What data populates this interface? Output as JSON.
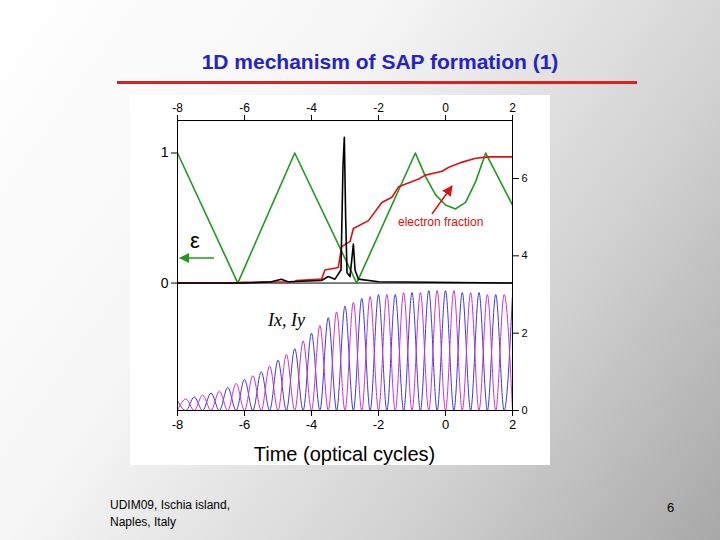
{
  "slide": {
    "title": "1D mechanism of SAP formation (1)",
    "footer": [
      "UDIM09, Ischia island,",
      "Naples, Italy"
    ],
    "page": 6
  },
  "chart_data": {
    "type": "line",
    "xlabel": "Time (optical cycles)",
    "xlim": [
      -8,
      2
    ],
    "xticks": [
      -8,
      -6,
      -4,
      -2,
      0,
      2
    ],
    "ylim": [
      -0.98,
      1.25
    ],
    "yticks": [
      0,
      1
    ],
    "y2lim": [
      0,
      7.5
    ],
    "y2ticks": [
      0,
      2,
      4,
      6
    ],
    "annotations": [
      "Ix, Iy"
    ],
    "series": [
      {
        "name": "ε",
        "color": "#1e9a1e",
        "x": [
          -8,
          -6.2,
          -4.5,
          -2.65,
          -0.9,
          -0.6,
          -0.3,
          0,
          0.3,
          0.6,
          0.9,
          1.2,
          1.6,
          2
        ],
        "values": [
          1,
          0,
          1,
          0,
          1,
          0.82,
          0.68,
          0.6,
          0.57,
          0.62,
          0.78,
          1,
          0.8,
          0.6
        ]
      },
      {
        "name": "electron fraction",
        "color": "#e01010",
        "x": [
          -8,
          -6.2,
          -6.1,
          -4.5,
          -4.45,
          -3.7,
          -3.6,
          -3.2,
          -3.1,
          -2.85,
          -2.75,
          -2.3,
          -1.9,
          -1.6,
          -1.4,
          -0.8,
          -0.6,
          -0.1,
          0.1,
          0.5,
          0.9,
          1.3,
          2
        ],
        "values": [
          0,
          0,
          0.005,
          0.01,
          0.02,
          0.03,
          0.1,
          0.12,
          0.28,
          0.32,
          0.42,
          0.48,
          0.62,
          0.66,
          0.74,
          0.8,
          0.83,
          0.86,
          0.89,
          0.93,
          0.96,
          0.97,
          0.97
        ]
      },
      {
        "color": "#000000",
        "x": [
          -8,
          -6,
          -5.2,
          -4.9,
          -4.7,
          -3.7,
          -3.5,
          -3.3,
          -3.12,
          -3.06,
          -3.02,
          -2.98,
          -2.94,
          -2.85,
          -2.75,
          -2.7,
          -2.6,
          -2,
          2
        ],
        "values": [
          0,
          0,
          0.01,
          0.03,
          0.01,
          0.02,
          0.05,
          0.03,
          0.1,
          0.9,
          1.12,
          0.5,
          0.08,
          0.05,
          0.3,
          0.1,
          0.03,
          0.01,
          0
        ]
      },
      {
        "color": "#3a3ad6",
        "axis": "y2",
        "x": [
          -8,
          -7.75,
          -7.5,
          -7.25,
          -7,
          -6.75,
          -6.5,
          -6.25,
          -6,
          -5.75,
          -5.5,
          -5.25,
          -5,
          -4.75,
          -4.5,
          -4.25,
          -4,
          -3.75,
          -3.5,
          -3.25,
          -3,
          -2.75,
          -2.5,
          -2.25,
          -2,
          -1.75,
          -1.5,
          -1.25,
          -1,
          -0.75,
          -0.5,
          -0.25,
          0,
          0.25,
          0.5,
          0.75,
          1,
          1.25,
          1.5,
          1.75,
          2
        ],
        "values": [
          0.25,
          0,
          0.35,
          0,
          0.45,
          0,
          0.6,
          0,
          0.8,
          0,
          1.0,
          0,
          1.3,
          0,
          1.6,
          0,
          2.0,
          0,
          2.4,
          0,
          2.7,
          0,
          2.9,
          0,
          3.0,
          0,
          3.0,
          0,
          3.05,
          0,
          3.1,
          0,
          3.1,
          0,
          3.05,
          0,
          3.05,
          0,
          3.0,
          0,
          3.0
        ]
      },
      {
        "color": "#d030c8",
        "axis": "y2",
        "x": [
          -8,
          -7.75,
          -7.5,
          -7.25,
          -7,
          -6.75,
          -6.5,
          -6.25,
          -6,
          -5.75,
          -5.5,
          -5.25,
          -5,
          -4.75,
          -4.5,
          -4.25,
          -4,
          -3.75,
          -3.5,
          -3.25,
          -3,
          -2.75,
          -2.5,
          -2.25,
          -2,
          -1.75,
          -1.5,
          -1.25,
          -1,
          -0.75,
          -0.5,
          -0.25,
          0,
          0.25,
          0.5,
          0.75,
          1,
          1.25,
          1.5,
          1.75,
          2
        ],
        "values": [
          0,
          0.3,
          0,
          0.4,
          0,
          0.5,
          0,
          0.7,
          0,
          0.9,
          0,
          1.15,
          0,
          1.45,
          0,
          1.8,
          0,
          2.2,
          0,
          2.55,
          0,
          2.8,
          0,
          2.95,
          0,
          3.0,
          0,
          3.05,
          0,
          3.05,
          0,
          3.1,
          0,
          3.1,
          0,
          3.05,
          0,
          3.0,
          0,
          3.0,
          0
        ]
      }
    ]
  }
}
